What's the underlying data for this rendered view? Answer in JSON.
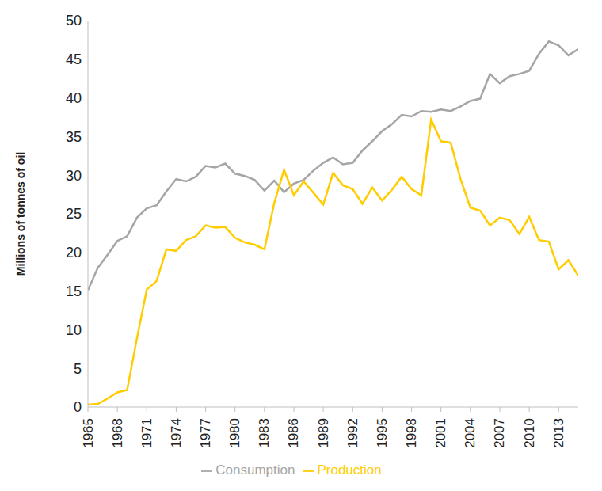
{
  "chart_data": {
    "type": "line",
    "y_label": "Millions of tonnes of oil",
    "x": [
      1965,
      1966,
      1967,
      1968,
      1969,
      1970,
      1971,
      1972,
      1973,
      1974,
      1975,
      1976,
      1977,
      1978,
      1979,
      1980,
      1981,
      1982,
      1983,
      1984,
      1985,
      1986,
      1987,
      1988,
      1989,
      1990,
      1991,
      1992,
      1993,
      1994,
      1995,
      1996,
      1997,
      1998,
      1999,
      2000,
      2001,
      2002,
      2003,
      2004,
      2005,
      2006,
      2007,
      2008,
      2009,
      2010,
      2011,
      2012,
      2013,
      2014,
      2015
    ],
    "xlim": [
      1965,
      2015
    ],
    "xticks": [
      1965,
      1968,
      1971,
      1974,
      1977,
      1980,
      1983,
      1986,
      1989,
      1992,
      1995,
      1998,
      2001,
      2004,
      2007,
      2010,
      2013
    ],
    "ylim": [
      0,
      50
    ],
    "yticks": [
      0,
      5,
      10,
      15,
      20,
      25,
      30,
      35,
      40,
      45,
      50
    ],
    "grid": false,
    "legend": "bottom",
    "series": [
      {
        "name": "Consumption",
        "color": "#a5a5a5",
        "values": [
          15.1,
          18.0,
          19.7,
          21.5,
          22.1,
          24.5,
          25.7,
          26.1,
          27.9,
          29.5,
          29.2,
          29.8,
          31.2,
          31.0,
          31.5,
          30.2,
          29.9,
          29.4,
          28.0,
          29.3,
          27.8,
          28.9,
          29.4,
          30.6,
          31.6,
          32.3,
          31.4,
          31.6,
          33.2,
          34.4,
          35.7,
          36.6,
          37.8,
          37.6,
          38.3,
          38.2,
          38.5,
          38.3,
          38.9,
          39.6,
          39.9,
          43.1,
          41.9,
          42.8,
          43.1,
          43.5,
          45.7,
          47.3,
          46.8,
          45.5,
          46.3
        ]
      },
      {
        "name": "Production",
        "color": "#ffcc00",
        "values": [
          0.3,
          0.4,
          1.1,
          1.9,
          2.2,
          8.9,
          15.2,
          16.3,
          20.4,
          20.2,
          21.6,
          22.1,
          23.5,
          23.2,
          23.3,
          21.9,
          21.3,
          21.0,
          20.4,
          26.4,
          30.7,
          27.4,
          29.2,
          27.7,
          26.2,
          30.3,
          28.7,
          28.2,
          26.3,
          28.4,
          26.7,
          28.1,
          29.8,
          28.2,
          27.4,
          37.2,
          34.4,
          34.2,
          29.5,
          25.8,
          25.4,
          23.5,
          24.5,
          24.2,
          22.4,
          24.6,
          21.6,
          21.4,
          17.8,
          19.0,
          17.0
        ]
      }
    ]
  }
}
